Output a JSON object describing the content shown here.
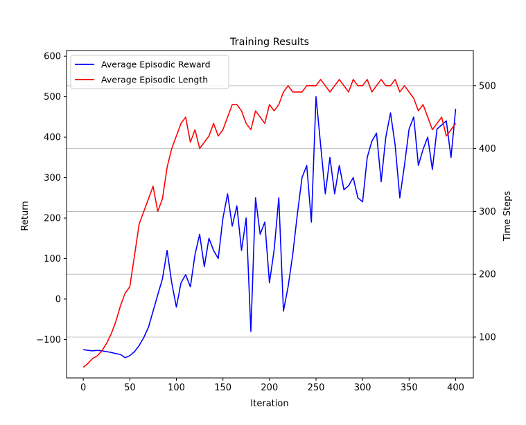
{
  "chart_data": {
    "type": "line",
    "title": "Training Results",
    "xlabel": "Iteration",
    "ylabel_left": "Return",
    "ylabel_right": "Time Steps",
    "xlim": [
      -18,
      419
    ],
    "ylim_left": [
      -195,
      614
    ],
    "ylim_right": [
      35,
      556
    ],
    "x_ticks": [
      0,
      50,
      100,
      150,
      200,
      250,
      300,
      350,
      400
    ],
    "y_left_ticks": [
      -100,
      0,
      100,
      200,
      300,
      400,
      500,
      600
    ],
    "y_right_ticks": [
      100,
      200,
      300,
      400,
      500
    ],
    "grid": "horizontal lines at right-axis ticks",
    "legend_position": "upper-left",
    "series": [
      {
        "name": "Average Episodic Reward",
        "axis": "left",
        "color": "#0000ff",
        "x": [
          0,
          5,
          10,
          15,
          20,
          25,
          30,
          35,
          40,
          45,
          50,
          55,
          60,
          65,
          70,
          75,
          80,
          85,
          90,
          95,
          100,
          105,
          110,
          115,
          120,
          125,
          130,
          135,
          140,
          145,
          150,
          155,
          160,
          165,
          170,
          175,
          180,
          185,
          190,
          195,
          200,
          205,
          210,
          215,
          220,
          225,
          230,
          235,
          240,
          245,
          250,
          255,
          260,
          265,
          270,
          275,
          280,
          285,
          290,
          295,
          300,
          305,
          310,
          315,
          320,
          325,
          330,
          335,
          340,
          345,
          350,
          355,
          360,
          365,
          370,
          375,
          380,
          385,
          390,
          395,
          400
        ],
        "y": [
          -125,
          -127,
          -128,
          -127,
          -128,
          -130,
          -132,
          -135,
          -137,
          -145,
          -140,
          -130,
          -115,
          -95,
          -70,
          -30,
          10,
          50,
          120,
          40,
          -20,
          40,
          60,
          30,
          110,
          160,
          80,
          150,
          120,
          100,
          200,
          260,
          180,
          230,
          120,
          200,
          -80,
          250,
          160,
          190,
          40,
          120,
          250,
          -30,
          30,
          110,
          210,
          300,
          330,
          190,
          500,
          380,
          260,
          350,
          260,
          330,
          270,
          280,
          300,
          250,
          240,
          350,
          390,
          410,
          290,
          400,
          460,
          380,
          250,
          330,
          420,
          450,
          330,
          370,
          400,
          320,
          420,
          430,
          440,
          350,
          470
        ]
      },
      {
        "name": "Average Episodic Length",
        "axis": "right",
        "color": "#ff0000",
        "x": [
          0,
          5,
          10,
          15,
          20,
          25,
          30,
          35,
          40,
          45,
          50,
          55,
          60,
          65,
          70,
          75,
          80,
          85,
          90,
          95,
          100,
          105,
          110,
          115,
          120,
          125,
          130,
          135,
          140,
          145,
          150,
          155,
          160,
          165,
          170,
          175,
          180,
          185,
          190,
          195,
          200,
          205,
          210,
          215,
          220,
          225,
          230,
          235,
          240,
          245,
          250,
          255,
          260,
          265,
          270,
          275,
          280,
          285,
          290,
          295,
          300,
          305,
          310,
          315,
          320,
          325,
          330,
          335,
          340,
          345,
          350,
          355,
          360,
          365,
          370,
          375,
          380,
          385,
          390,
          395,
          400
        ],
        "y": [
          52,
          58,
          66,
          70,
          78,
          90,
          105,
          125,
          150,
          170,
          180,
          230,
          280,
          300,
          320,
          340,
          300,
          320,
          370,
          400,
          420,
          440,
          450,
          410,
          430,
          400,
          410,
          420,
          440,
          420,
          430,
          450,
          470,
          470,
          460,
          440,
          430,
          460,
          450,
          440,
          470,
          460,
          470,
          490,
          500,
          490,
          490,
          490,
          500,
          500,
          500,
          510,
          500,
          490,
          500,
          510,
          500,
          490,
          510,
          500,
          500,
          510,
          490,
          500,
          510,
          500,
          500,
          510,
          490,
          500,
          490,
          480,
          460,
          470,
          450,
          430,
          440,
          450,
          420,
          430,
          440
        ]
      }
    ]
  }
}
